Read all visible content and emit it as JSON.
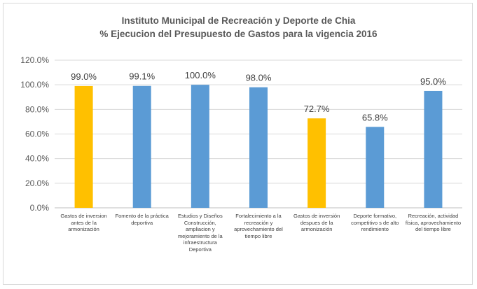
{
  "chart_data": {
    "type": "bar",
    "title": "Instituto Municipal de Recreación y Deporte de Chia",
    "subtitle": "% Ejecucion del Presupuesto de Gastos para la vigencia 2016",
    "categories": [
      "Gastos de inversion antes de la armonización",
      "Fomento de la práctica deportiva",
      "Estudios y Diseños Construcción, ampliacion y mejoramiento de la infraestructura Deportiva",
      "Fortalecimiento a la recreación y aprovechamiento del tiempo libre",
      "Gastos de inversión despues de la armonización",
      "Deporte formativo, competitivo s de alto rendimiento",
      "Recreación, actividad física, aprovechamiento del tiempo libre"
    ],
    "values": [
      99.0,
      99.1,
      100.0,
      98.0,
      72.7,
      65.8,
      95.0
    ],
    "data_labels": [
      "99.0%",
      "99.1%",
      "100.0%",
      "98.0%",
      "72.7%",
      "65.8%",
      "95.0%"
    ],
    "colors": [
      "#ffc000",
      "#5b9bd5",
      "#5b9bd5",
      "#5b9bd5",
      "#ffc000",
      "#5b9bd5",
      "#5b9bd5"
    ],
    "ylim": [
      0,
      120
    ],
    "yticks": [
      "0.0%",
      "20.0%",
      "40.0%",
      "60.0%",
      "80.0%",
      "100.0%",
      "120.0%"
    ],
    "grid": true,
    "legend": "none"
  }
}
